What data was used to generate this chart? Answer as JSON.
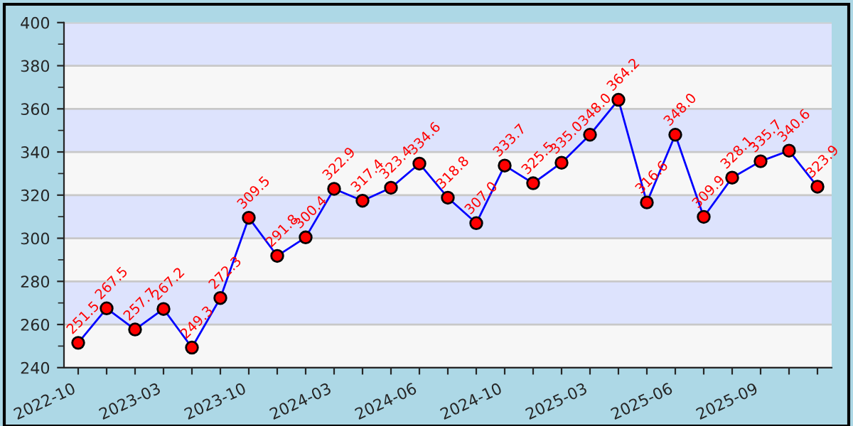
{
  "chart_data": {
    "type": "line",
    "categories": [
      "2022-10",
      null,
      null,
      "2023-03",
      null,
      null,
      "2023-10",
      null,
      null,
      "2024-03",
      null,
      null,
      "2024-06",
      null,
      null,
      "2024-10",
      null,
      null,
      "2025-03",
      null,
      null,
      "2025-06",
      null,
      null,
      "2025-09",
      null,
      null
    ],
    "series": [
      {
        "color": "#0000ff",
        "values": [
          251.5,
          267.5,
          257.7,
          267.2,
          249.3,
          272.3,
          309.5,
          291.8,
          300.4,
          322.9,
          317.4,
          323.4,
          334.6,
          318.8,
          307.0,
          333.7,
          325.5,
          335.0,
          348.0,
          364.2,
          316.6,
          348.0,
          309.9,
          328.1,
          335.7,
          340.6,
          323.9
        ],
        "value_labels": [
          "251.5",
          "267.5",
          "257.7",
          "267.2",
          "249.3",
          "272.3",
          "309.5",
          "291.8",
          "300.4",
          "322.9",
          "317.4",
          "323.4",
          "334.6",
          "318.8",
          "307.0",
          "333.7",
          "325.5",
          "335.0",
          "348.0",
          "364.2",
          "316.6",
          "348.0",
          "309.9",
          "328.1",
          "335.7",
          "340.6",
          "323.9"
        ]
      }
    ],
    "ylim": [
      240,
      400
    ],
    "yticks": [
      240,
      260,
      280,
      300,
      320,
      340,
      360,
      380,
      400
    ],
    "bands": [
      {
        "axis": "y",
        "from": 260,
        "to": 280,
        "color": "#dde3fd"
      },
      {
        "axis": "y",
        "from": 300,
        "to": 320,
        "color": "#dde3fd"
      },
      {
        "axis": "y",
        "from": 340,
        "to": 360,
        "color": "#dde3fd"
      },
      {
        "axis": "y",
        "from": 380,
        "to": 400,
        "color": "#dde3fd"
      }
    ],
    "grid": "y",
    "marker": "circle",
    "line_style": "solid"
  }
}
